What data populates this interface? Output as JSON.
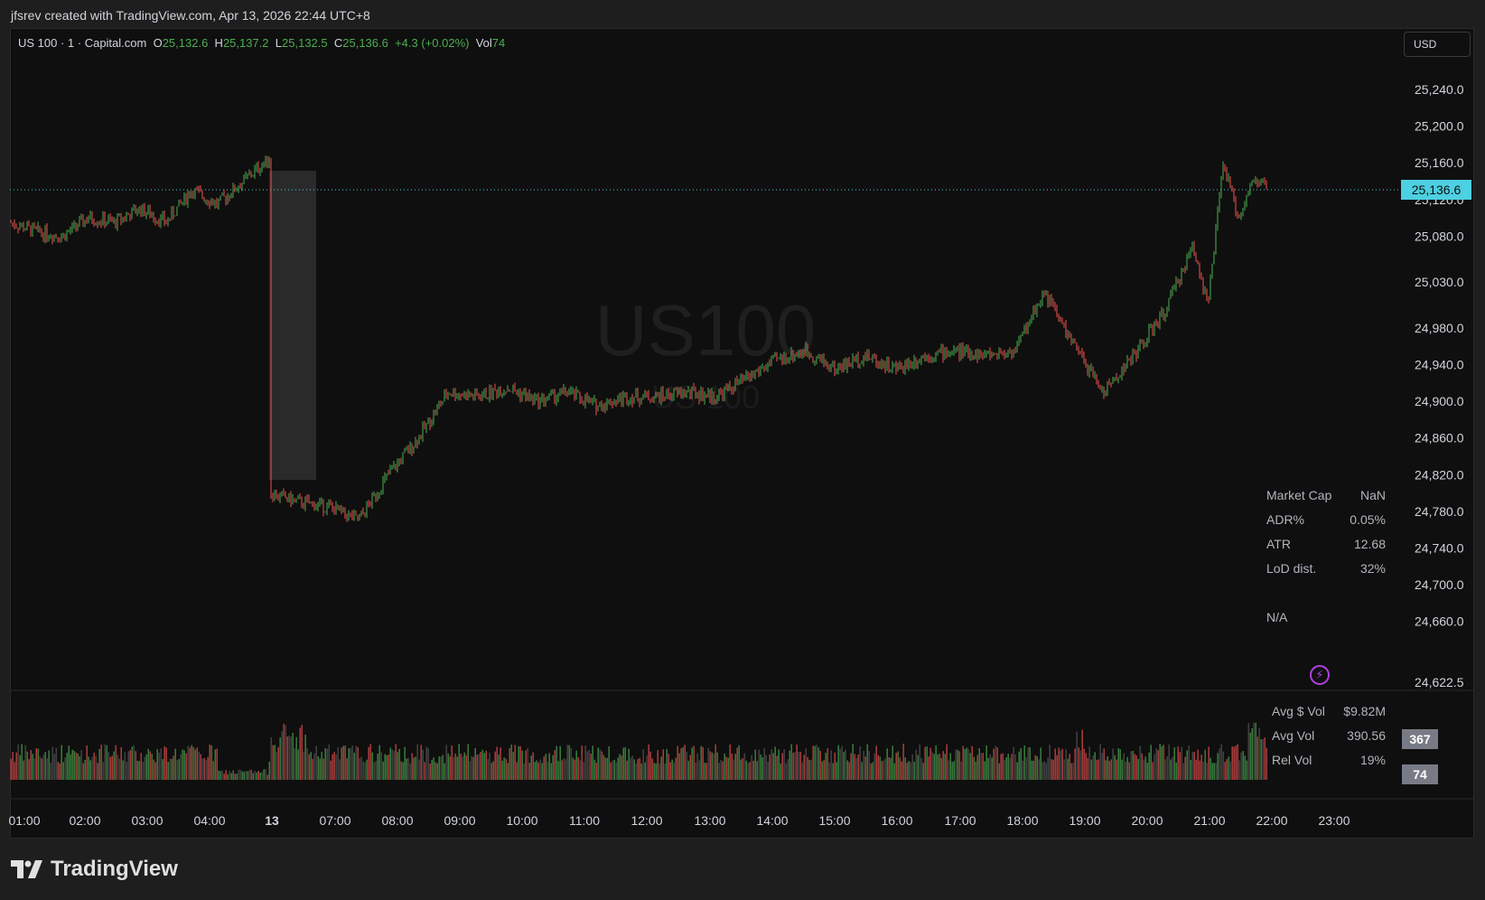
{
  "header": {
    "title": "jfsrev created with TradingView.com, Apr 13, 2026 22:44 UTC+8"
  },
  "legend": {
    "symbol": "US 100 · 1 · Capital.com",
    "o_label": "O",
    "o_value": "25,132.6",
    "h_label": "H",
    "h_value": "25,137.2",
    "l_label": "L",
    "l_value": "25,132.5",
    "c_label": "C",
    "c_value": "25,136.6",
    "change": "+4.3 (+0.02%)",
    "vol_label": "Vol",
    "vol_value": "74"
  },
  "currency": "USD",
  "watermark": {
    "main": "US100",
    "sub": "US 100"
  },
  "price_axis": {
    "ticks": [
      25240,
      25200,
      25160,
      25120,
      25080,
      25030,
      24980,
      24940,
      24900,
      24860,
      24820,
      24780,
      24740,
      24700,
      24660,
      24622.5
    ],
    "tick_labels": [
      "25,240.0",
      "25,200.0",
      "25,160.0",
      "25,120.0",
      "25,080.0",
      "25,030.0",
      "24,980.0",
      "24,940.0",
      "24,900.0",
      "24,860.0",
      "24,820.0",
      "24,780.0",
      "24,740.0",
      "24,700.0",
      "24,660.0",
      "24,622.5"
    ],
    "last_price": "25,136.6"
  },
  "time_axis": {
    "labels": [
      "01:00",
      "02:00",
      "03:00",
      "04:00",
      "13",
      "07:00",
      "08:00",
      "09:00",
      "10:00",
      "11:00",
      "12:00",
      "13:00",
      "14:00",
      "15:00",
      "16:00",
      "17:00",
      "18:00",
      "19:00",
      "20:00",
      "21:00",
      "22:00",
      "23:00"
    ]
  },
  "stats": {
    "market_cap_label": "Market Cap",
    "market_cap_value": "NaN",
    "adr_label": "ADR%",
    "adr_value": "0.05%",
    "atr_label": "ATR",
    "atr_value": "12.68",
    "lod_label": "LoD dist.",
    "lod_value": "32%",
    "na_label": "N/A",
    "avg_dollar_vol_label": "Avg $ Vol",
    "avg_dollar_vol_value": "$9.82M",
    "avg_vol_label": "Avg Vol",
    "avg_vol_value": "390.56",
    "rel_vol_label": "Rel Vol",
    "rel_vol_value": "19%"
  },
  "volume_axis": {
    "tag_avg": "367",
    "tag_last": "74"
  },
  "brand": {
    "name": "TradingView"
  },
  "colors": {
    "up": "#26a69a",
    "up_green": "#4caf50",
    "down": "#ef5350",
    "accent": "#4dd0e1",
    "bolt": "#b040e0"
  },
  "chart_data": {
    "type": "candlestick",
    "interval": "1 minute",
    "symbol": "US 100",
    "ylim": [
      24622.5,
      25265
    ],
    "price_path": [
      {
        "t": "00:00",
        "v": 25095
      },
      {
        "t": "00:30",
        "v": 25085
      },
      {
        "t": "01:00",
        "v": 25080
      },
      {
        "t": "01:30",
        "v": 25100
      },
      {
        "t": "02:00",
        "v": 25095
      },
      {
        "t": "02:30",
        "v": 25110
      },
      {
        "t": "03:00",
        "v": 25095
      },
      {
        "t": "03:30",
        "v": 25130
      },
      {
        "t": "04:00",
        "v": 25115
      },
      {
        "t": "04:30",
        "v": 25140
      },
      {
        "t": "05:00",
        "v": 25165
      },
      {
        "t": "06:00",
        "v": 24800
      },
      {
        "t": "06:30",
        "v": 24790
      },
      {
        "t": "07:00",
        "v": 24785
      },
      {
        "t": "07:30",
        "v": 24770
      },
      {
        "t": "08:00",
        "v": 24820
      },
      {
        "t": "08:30",
        "v": 24860
      },
      {
        "t": "09:00",
        "v": 24910
      },
      {
        "t": "09:30",
        "v": 24905
      },
      {
        "t": "10:00",
        "v": 24915
      },
      {
        "t": "10:30",
        "v": 24900
      },
      {
        "t": "11:00",
        "v": 24910
      },
      {
        "t": "11:30",
        "v": 24895
      },
      {
        "t": "12:00",
        "v": 24905
      },
      {
        "t": "12:30",
        "v": 24905
      },
      {
        "t": "13:00",
        "v": 24910
      },
      {
        "t": "13:30",
        "v": 24905
      },
      {
        "t": "14:00",
        "v": 24925
      },
      {
        "t": "14:30",
        "v": 24945
      },
      {
        "t": "15:00",
        "v": 24955
      },
      {
        "t": "15:30",
        "v": 24935
      },
      {
        "t": "16:00",
        "v": 24950
      },
      {
        "t": "16:30",
        "v": 24935
      },
      {
        "t": "17:00",
        "v": 24950
      },
      {
        "t": "17:30",
        "v": 24955
      },
      {
        "t": "18:00",
        "v": 24950
      },
      {
        "t": "18:30",
        "v": 24955
      },
      {
        "t": "19:00",
        "v": 25020
      },
      {
        "t": "19:30",
        "v": 24960
      },
      {
        "t": "20:00",
        "v": 24910
      },
      {
        "t": "20:30",
        "v": 24950
      },
      {
        "t": "21:00",
        "v": 24995
      },
      {
        "t": "21:30",
        "v": 25070
      },
      {
        "t": "21:45",
        "v": 25005
      },
      {
        "t": "22:00",
        "v": 25160
      },
      {
        "t": "22:15",
        "v": 25100
      },
      {
        "t": "22:30",
        "v": 25140
      },
      {
        "t": "22:44",
        "v": 25136.6
      }
    ],
    "volume_last": 74,
    "volume_avg": 367
  }
}
